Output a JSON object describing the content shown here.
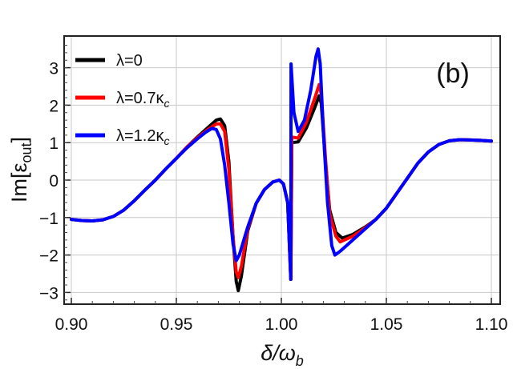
{
  "chart_data": {
    "type": "line",
    "panel_label": "(b)",
    "xlabel": {
      "main": "δ/ω",
      "sub": "b"
    },
    "ylabel": {
      "main": "Im[ε",
      "sub": "out",
      "close": "]"
    },
    "xlim": [
      0.9,
      1.1
    ],
    "ylim": [
      -3.3,
      3.83
    ],
    "xticks": [
      "0.90",
      "0.95",
      "1.00",
      "1.05",
      "1.10"
    ],
    "yticks": [
      "-3",
      "-2",
      "-1",
      "0",
      "1",
      "2",
      "3"
    ],
    "grid": true,
    "legend_position": "top-left",
    "series": [
      {
        "name": "λ=0",
        "name_sub": "",
        "color": "#000000",
        "points": [
          [
            0.9,
            -1.05
          ],
          [
            0.905,
            -1.08
          ],
          [
            0.91,
            -1.09
          ],
          [
            0.915,
            -1.06
          ],
          [
            0.92,
            -0.97
          ],
          [
            0.925,
            -0.8
          ],
          [
            0.93,
            -0.55
          ],
          [
            0.935,
            -0.27
          ],
          [
            0.94,
            0.0
          ],
          [
            0.945,
            0.3
          ],
          [
            0.95,
            0.58
          ],
          [
            0.955,
            0.88
          ],
          [
            0.96,
            1.15
          ],
          [
            0.965,
            1.4
          ],
          [
            0.969,
            1.6
          ],
          [
            0.971,
            1.63
          ],
          [
            0.973,
            1.45
          ],
          [
            0.975,
            0.5
          ],
          [
            0.977,
            -1.5
          ],
          [
            0.9785,
            -2.7
          ],
          [
            0.9795,
            -2.95
          ],
          [
            0.981,
            -2.55
          ],
          [
            0.984,
            -1.35
          ],
          [
            0.988,
            -0.62
          ],
          [
            0.992,
            -0.25
          ],
          [
            0.996,
            -0.05
          ],
          [
            0.999,
            0.0
          ],
          [
            1.001,
            -0.1
          ],
          [
            1.003,
            -0.6
          ],
          [
            1.0045,
            -2.65
          ],
          [
            1.005,
            1.0
          ],
          [
            1.008,
            1.02
          ],
          [
            1.012,
            1.4
          ],
          [
            1.016,
            1.95
          ],
          [
            1.018,
            2.25
          ],
          [
            1.019,
            2.05
          ],
          [
            1.021,
            0.5
          ],
          [
            1.023,
            -0.8
          ],
          [
            1.026,
            -1.4
          ],
          [
            1.029,
            -1.55
          ],
          [
            1.034,
            -1.45
          ],
          [
            1.04,
            -1.25
          ],
          [
            1.045,
            -1.05
          ],
          [
            1.05,
            -0.75
          ],
          [
            1.055,
            -0.35
          ],
          [
            1.06,
            0.05
          ],
          [
            1.065,
            0.45
          ],
          [
            1.07,
            0.75
          ],
          [
            1.075,
            0.95
          ],
          [
            1.08,
            1.05
          ],
          [
            1.085,
            1.08
          ],
          [
            1.09,
            1.07
          ],
          [
            1.095,
            1.06
          ],
          [
            1.1,
            1.04
          ]
        ]
      },
      {
        "name": "λ=0.7κ",
        "name_sub": "c",
        "color": "#ff0000",
        "points": [
          [
            0.9,
            -1.05
          ],
          [
            0.905,
            -1.08
          ],
          [
            0.91,
            -1.09
          ],
          [
            0.915,
            -1.06
          ],
          [
            0.92,
            -0.97
          ],
          [
            0.925,
            -0.8
          ],
          [
            0.93,
            -0.55
          ],
          [
            0.935,
            -0.27
          ],
          [
            0.94,
            0.0
          ],
          [
            0.945,
            0.3
          ],
          [
            0.95,
            0.58
          ],
          [
            0.955,
            0.88
          ],
          [
            0.96,
            1.13
          ],
          [
            0.965,
            1.35
          ],
          [
            0.969,
            1.5
          ],
          [
            0.971,
            1.5
          ],
          [
            0.973,
            1.3
          ],
          [
            0.975,
            0.3
          ],
          [
            0.977,
            -1.5
          ],
          [
            0.9785,
            -2.45
          ],
          [
            0.9795,
            -2.6
          ],
          [
            0.981,
            -2.3
          ],
          [
            0.984,
            -1.3
          ],
          [
            0.988,
            -0.62
          ],
          [
            0.992,
            -0.25
          ],
          [
            0.996,
            -0.05
          ],
          [
            0.999,
            0.0
          ],
          [
            1.001,
            -0.1
          ],
          [
            1.003,
            -0.6
          ],
          [
            1.0045,
            -2.65
          ],
          [
            1.005,
            1.15
          ],
          [
            1.008,
            1.12
          ],
          [
            1.012,
            1.55
          ],
          [
            1.016,
            2.2
          ],
          [
            1.018,
            2.55
          ],
          [
            1.019,
            2.3
          ],
          [
            1.021,
            0.6
          ],
          [
            1.023,
            -0.9
          ],
          [
            1.026,
            -1.5
          ],
          [
            1.028,
            -1.65
          ],
          [
            1.034,
            -1.5
          ],
          [
            1.04,
            -1.27
          ],
          [
            1.045,
            -1.05
          ],
          [
            1.05,
            -0.75
          ],
          [
            1.055,
            -0.35
          ],
          [
            1.06,
            0.05
          ],
          [
            1.065,
            0.45
          ],
          [
            1.07,
            0.75
          ],
          [
            1.075,
            0.95
          ],
          [
            1.08,
            1.05
          ],
          [
            1.085,
            1.08
          ],
          [
            1.09,
            1.07
          ],
          [
            1.095,
            1.06
          ],
          [
            1.1,
            1.04
          ]
        ]
      },
      {
        "name": "λ=1.2κ",
        "name_sub": "c",
        "color": "#0000ff",
        "points": [
          [
            0.9,
            -1.05
          ],
          [
            0.905,
            -1.08
          ],
          [
            0.91,
            -1.09
          ],
          [
            0.915,
            -1.06
          ],
          [
            0.92,
            -0.97
          ],
          [
            0.925,
            -0.8
          ],
          [
            0.93,
            -0.55
          ],
          [
            0.935,
            -0.27
          ],
          [
            0.94,
            0.0
          ],
          [
            0.945,
            0.3
          ],
          [
            0.95,
            0.58
          ],
          [
            0.955,
            0.86
          ],
          [
            0.96,
            1.1
          ],
          [
            0.964,
            1.28
          ],
          [
            0.967,
            1.38
          ],
          [
            0.969,
            1.35
          ],
          [
            0.971,
            1.1
          ],
          [
            0.973,
            0.4
          ],
          [
            0.975,
            -0.6
          ],
          [
            0.977,
            -1.7
          ],
          [
            0.9785,
            -2.15
          ],
          [
            0.98,
            -2.0
          ],
          [
            0.984,
            -1.25
          ],
          [
            0.988,
            -0.62
          ],
          [
            0.992,
            -0.25
          ],
          [
            0.996,
            -0.05
          ],
          [
            0.999,
            0.0
          ],
          [
            1.001,
            -0.1
          ],
          [
            1.003,
            -0.6
          ],
          [
            1.0045,
            -2.65
          ],
          [
            1.0046,
            3.1
          ],
          [
            1.006,
            1.8
          ],
          [
            1.008,
            1.3
          ],
          [
            1.011,
            1.6
          ],
          [
            1.014,
            2.4
          ],
          [
            1.0165,
            3.3
          ],
          [
            1.0175,
            3.5
          ],
          [
            1.0185,
            3.1
          ],
          [
            1.02,
            1.3
          ],
          [
            1.022,
            -0.6
          ],
          [
            1.024,
            -1.75
          ],
          [
            1.0255,
            -2.0
          ],
          [
            1.028,
            -1.9
          ],
          [
            1.034,
            -1.6
          ],
          [
            1.04,
            -1.3
          ],
          [
            1.045,
            -1.05
          ],
          [
            1.05,
            -0.75
          ],
          [
            1.055,
            -0.35
          ],
          [
            1.06,
            0.05
          ],
          [
            1.065,
            0.45
          ],
          [
            1.07,
            0.75
          ],
          [
            1.075,
            0.95
          ],
          [
            1.08,
            1.05
          ],
          [
            1.085,
            1.08
          ],
          [
            1.09,
            1.07
          ],
          [
            1.095,
            1.06
          ],
          [
            1.1,
            1.04
          ]
        ]
      }
    ]
  }
}
